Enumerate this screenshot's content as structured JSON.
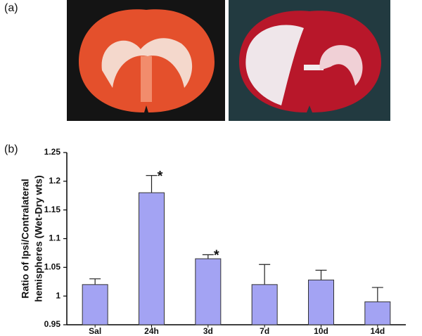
{
  "figure": {
    "panel_labels": [
      "(a)",
      "(b)"
    ]
  },
  "chart_data": {
    "type": "bar",
    "ylabel": [
      "Ratio of Ipsi/Contralateral",
      "hemispheres (Wet-Dry wts)"
    ],
    "categories": [
      "Sal",
      "24h",
      "3d",
      "7d",
      "10d",
      "14d"
    ],
    "values": [
      1.02,
      1.18,
      1.065,
      1.02,
      1.028,
      0.99
    ],
    "errors": [
      0.01,
      0.03,
      0.007,
      0.035,
      0.017,
      0.025
    ],
    "color": "#a3a3f3",
    "annotations": [
      {
        "category": "24h",
        "text": "*"
      },
      {
        "category": "3d",
        "text": "*"
      }
    ],
    "ylim": [
      0.95,
      1.25
    ],
    "yticks": [
      1.25,
      1.2,
      1.15,
      1.1,
      1.05,
      1,
      0.95
    ]
  }
}
